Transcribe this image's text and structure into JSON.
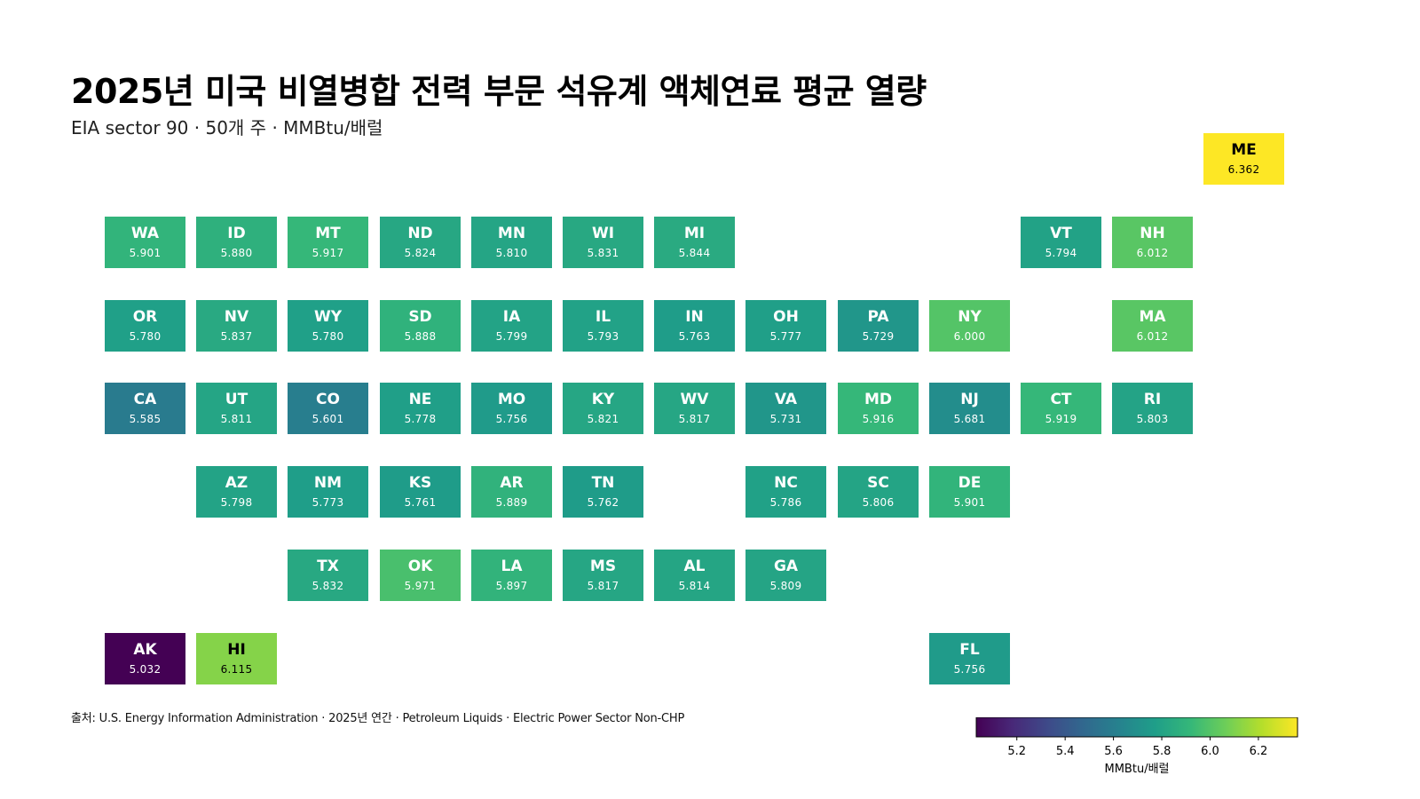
{
  "title": "2025년 미국 비열병합 전력 부문 석유계 액체연료 평균 열량",
  "subtitle": "EIA sector 90 · 50개 주 · MMBtu/배럴",
  "source": "출처: U.S. Energy Information Administration · 2025년 연간 · Petroleum Liquids · Electric Power Sector Non-CHP",
  "colors": {
    "viridis": [
      "#440154",
      "#482878",
      "#3e4a89",
      "#31688e",
      "#26828e",
      "#1f9e89",
      "#35b779",
      "#6ece58",
      "#b5de2b",
      "#fde725"
    ],
    "text_dark": "#000000",
    "text_light": "#ffffff"
  },
  "chart_data": {
    "type": "heatmap",
    "title": "2025년 미국 비열병합 전력 부문 석유계 액체연료 평균 열량",
    "subtitle": "EIA sector 90 · 50개 주 · MMBtu/배럴",
    "layout": "US state tile grid map",
    "color_scale": {
      "name": "viridis",
      "min": 5.032,
      "max": 6.362,
      "ticks": [
        "5.2",
        "5.4",
        "5.6",
        "5.8",
        "6.0",
        "6.2"
      ],
      "label": "MMBtu/배럴",
      "position": "bottom-right"
    },
    "states": [
      {
        "abbr": "ME",
        "value": "6.362",
        "row": 0,
        "col": 12
      },
      {
        "abbr": "WA",
        "value": "5.901",
        "row": 1,
        "col": 0
      },
      {
        "abbr": "ID",
        "value": "5.880",
        "row": 1,
        "col": 1
      },
      {
        "abbr": "MT",
        "value": "5.917",
        "row": 1,
        "col": 2
      },
      {
        "abbr": "ND",
        "value": "5.824",
        "row": 1,
        "col": 3
      },
      {
        "abbr": "MN",
        "value": "5.810",
        "row": 1,
        "col": 4
      },
      {
        "abbr": "WI",
        "value": "5.831",
        "row": 1,
        "col": 5
      },
      {
        "abbr": "MI",
        "value": "5.844",
        "row": 1,
        "col": 6
      },
      {
        "abbr": "VT",
        "value": "5.794",
        "row": 1,
        "col": 10
      },
      {
        "abbr": "NH",
        "value": "6.012",
        "row": 1,
        "col": 11
      },
      {
        "abbr": "OR",
        "value": "5.780",
        "row": 2,
        "col": 0
      },
      {
        "abbr": "NV",
        "value": "5.837",
        "row": 2,
        "col": 1
      },
      {
        "abbr": "WY",
        "value": "5.780",
        "row": 2,
        "col": 2
      },
      {
        "abbr": "SD",
        "value": "5.888",
        "row": 2,
        "col": 3
      },
      {
        "abbr": "IA",
        "value": "5.799",
        "row": 2,
        "col": 4
      },
      {
        "abbr": "IL",
        "value": "5.793",
        "row": 2,
        "col": 5
      },
      {
        "abbr": "IN",
        "value": "5.763",
        "row": 2,
        "col": 6
      },
      {
        "abbr": "OH",
        "value": "5.777",
        "row": 2,
        "col": 7
      },
      {
        "abbr": "PA",
        "value": "5.729",
        "row": 2,
        "col": 8
      },
      {
        "abbr": "NY",
        "value": "6.000",
        "row": 2,
        "col": 9
      },
      {
        "abbr": "MA",
        "value": "6.012",
        "row": 2,
        "col": 11
      },
      {
        "abbr": "CA",
        "value": "5.585",
        "row": 3,
        "col": 0
      },
      {
        "abbr": "UT",
        "value": "5.811",
        "row": 3,
        "col": 1
      },
      {
        "abbr": "CO",
        "value": "5.601",
        "row": 3,
        "col": 2
      },
      {
        "abbr": "NE",
        "value": "5.778",
        "row": 3,
        "col": 3
      },
      {
        "abbr": "MO",
        "value": "5.756",
        "row": 3,
        "col": 4
      },
      {
        "abbr": "KY",
        "value": "5.821",
        "row": 3,
        "col": 5
      },
      {
        "abbr": "WV",
        "value": "5.817",
        "row": 3,
        "col": 6
      },
      {
        "abbr": "VA",
        "value": "5.731",
        "row": 3,
        "col": 7
      },
      {
        "abbr": "MD",
        "value": "5.916",
        "row": 3,
        "col": 8
      },
      {
        "abbr": "NJ",
        "value": "5.681",
        "row": 3,
        "col": 9
      },
      {
        "abbr": "CT",
        "value": "5.919",
        "row": 3,
        "col": 10
      },
      {
        "abbr": "RI",
        "value": "5.803",
        "row": 3,
        "col": 11
      },
      {
        "abbr": "AZ",
        "value": "5.798",
        "row": 4,
        "col": 1
      },
      {
        "abbr": "NM",
        "value": "5.773",
        "row": 4,
        "col": 2
      },
      {
        "abbr": "KS",
        "value": "5.761",
        "row": 4,
        "col": 3
      },
      {
        "abbr": "AR",
        "value": "5.889",
        "row": 4,
        "col": 4
      },
      {
        "abbr": "TN",
        "value": "5.762",
        "row": 4,
        "col": 5
      },
      {
        "abbr": "NC",
        "value": "5.786",
        "row": 4,
        "col": 7
      },
      {
        "abbr": "SC",
        "value": "5.806",
        "row": 4,
        "col": 8
      },
      {
        "abbr": "DE",
        "value": "5.901",
        "row": 4,
        "col": 9
      },
      {
        "abbr": "TX",
        "value": "5.832",
        "row": 5,
        "col": 2
      },
      {
        "abbr": "OK",
        "value": "5.971",
        "row": 5,
        "col": 3
      },
      {
        "abbr": "LA",
        "value": "5.897",
        "row": 5,
        "col": 4
      },
      {
        "abbr": "MS",
        "value": "5.817",
        "row": 5,
        "col": 5
      },
      {
        "abbr": "AL",
        "value": "5.814",
        "row": 5,
        "col": 6
      },
      {
        "abbr": "GA",
        "value": "5.809",
        "row": 5,
        "col": 7
      },
      {
        "abbr": "AK",
        "value": "5.032",
        "row": 6,
        "col": 0
      },
      {
        "abbr": "HI",
        "value": "6.115",
        "row": 6,
        "col": 1
      },
      {
        "abbr": "FL",
        "value": "5.756",
        "row": 6,
        "col": 9
      }
    ]
  }
}
